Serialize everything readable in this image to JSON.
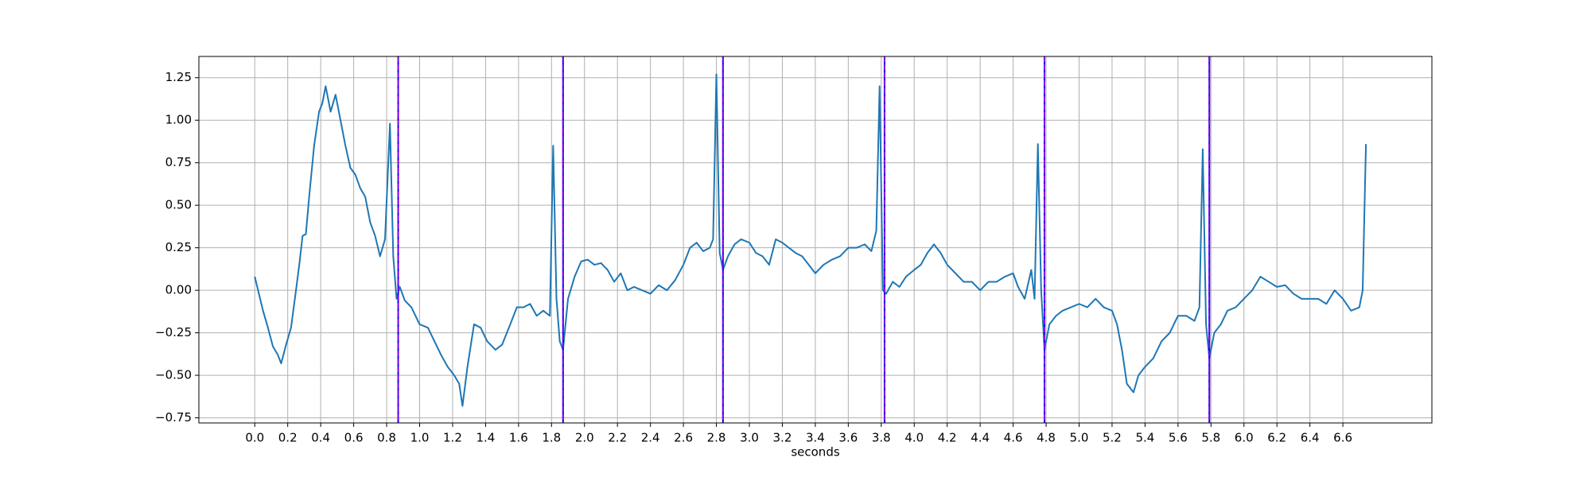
{
  "chart_data": {
    "type": "line",
    "xlabel": "seconds",
    "color": "#1f77b4",
    "grid": true,
    "xlim": [
      -0.339,
      7.14
    ],
    "ylim": [
      -0.78,
      1.375
    ],
    "xticks": [
      {
        "value": 0,
        "label": "0.0"
      },
      0.2,
      0.4,
      0.6,
      0.8,
      {
        "value": 1,
        "label": "1.0"
      },
      1.2,
      1.4,
      1.6,
      1.8,
      {
        "value": 2,
        "label": "2.0"
      },
      2.2,
      2.4,
      2.6,
      2.8,
      {
        "value": 3,
        "label": "3.0"
      },
      3.2,
      3.4,
      3.6,
      3.8,
      {
        "value": 4,
        "label": "4.0"
      },
      4.2,
      4.4,
      4.6,
      4.8,
      {
        "value": 5,
        "label": "5.0"
      },
      5.2,
      5.4,
      5.6,
      5.8,
      {
        "value": 6,
        "label": "6.0"
      },
      6.2,
      6.4,
      6.6
    ],
    "yticks": [
      {
        "value": -0.75,
        "label": "−0.75"
      },
      {
        "value": -0.5,
        "label": "−0.50"
      },
      {
        "value": -0.25,
        "label": "−0.25"
      },
      {
        "value": 0,
        "label": "0.00"
      },
      0.25,
      {
        "value": 0.5,
        "label": "0.50"
      },
      0.75,
      {
        "value": 1,
        "label": "1.00"
      },
      1.25
    ],
    "vlines": [
      {
        "color": "#0000ff",
        "style": "solid",
        "x": [
          0.87,
          1.87,
          2.84,
          3.82,
          4.79,
          5.79
        ]
      },
      {
        "color": "#8a00e6",
        "style": "dashed",
        "x": [
          0.87,
          1.87,
          2.84,
          3.82,
          4.79,
          5.79
        ]
      }
    ],
    "x": [
      0,
      0.02,
      0.05,
      0.08,
      0.11,
      0.14,
      0.16,
      0.19,
      0.22,
      0.25,
      0.27,
      0.29,
      0.31,
      0.33,
      0.36,
      0.39,
      0.41,
      0.43,
      0.46,
      0.49,
      0.52,
      0.55,
      0.58,
      0.61,
      0.64,
      0.67,
      0.7,
      0.73,
      0.76,
      0.79,
      0.82,
      0.84,
      0.86,
      0.88,
      0.91,
      0.95,
      1,
      1.05,
      1.09,
      1.13,
      1.17,
      1.21,
      1.24,
      1.26,
      1.29,
      1.33,
      1.37,
      1.41,
      1.46,
      1.5,
      1.55,
      1.59,
      1.63,
      1.67,
      1.71,
      1.75,
      1.79,
      1.81,
      1.83,
      1.85,
      1.87,
      1.9,
      1.94,
      1.98,
      2.02,
      2.06,
      2.1,
      2.14,
      2.18,
      2.22,
      2.26,
      2.3,
      2.35,
      2.4,
      2.45,
      2.5,
      2.55,
      2.6,
      2.64,
      2.68,
      2.72,
      2.76,
      2.78,
      2.8,
      2.82,
      2.84,
      2.87,
      2.91,
      2.95,
      3,
      3.04,
      3.08,
      3.12,
      3.16,
      3.2,
      3.24,
      3.28,
      3.32,
      3.36,
      3.4,
      3.45,
      3.5,
      3.55,
      3.6,
      3.65,
      3.7,
      3.74,
      3.77,
      3.79,
      3.81,
      3.83,
      3.87,
      3.91,
      3.95,
      4,
      4.04,
      4.08,
      4.12,
      4.16,
      4.2,
      4.25,
      4.3,
      4.35,
      4.4,
      4.45,
      4.5,
      4.55,
      4.6,
      4.63,
      4.67,
      4.71,
      4.73,
      4.75,
      4.77,
      4.79,
      4.82,
      4.86,
      4.9,
      4.95,
      5,
      5.05,
      5.1,
      5.15,
      5.2,
      5.23,
      5.26,
      5.29,
      5.33,
      5.36,
      5.4,
      5.45,
      5.5,
      5.55,
      5.6,
      5.65,
      5.7,
      5.73,
      5.75,
      5.77,
      5.79,
      5.82,
      5.86,
      5.9,
      5.95,
      6,
      6.05,
      6.1,
      6.15,
      6.2,
      6.25,
      6.3,
      6.35,
      6.4,
      6.45,
      6.5,
      6.55,
      6.6,
      6.65,
      6.7,
      6.72,
      6.74
    ],
    "values": [
      0.08,
      0,
      -0.12,
      -0.22,
      -0.33,
      -0.38,
      -0.43,
      -0.32,
      -0.22,
      0,
      0.15,
      0.32,
      0.33,
      0.55,
      0.85,
      1.05,
      1.1,
      1.2,
      1.05,
      1.15,
      1,
      0.85,
      0.72,
      0.68,
      0.6,
      0.55,
      0.4,
      0.32,
      0.2,
      0.3,
      0.98,
      0.2,
      -0.05,
      0.02,
      -0.06,
      -0.1,
      -0.2,
      -0.22,
      -0.3,
      -0.38,
      -0.45,
      -0.5,
      -0.55,
      -0.68,
      -0.45,
      -0.2,
      -0.22,
      -0.3,
      -0.35,
      -0.32,
      -0.2,
      -0.1,
      -0.1,
      -0.08,
      -0.15,
      -0.12,
      -0.15,
      0.85,
      -0.05,
      -0.3,
      -0.35,
      -0.05,
      0.08,
      0.17,
      0.18,
      0.15,
      0.16,
      0.12,
      0.05,
      0.1,
      0,
      0.02,
      0,
      -0.02,
      0.03,
      0,
      0.06,
      0.15,
      0.25,
      0.28,
      0.23,
      0.25,
      0.3,
      1.27,
      0.22,
      0.12,
      0.2,
      0.27,
      0.3,
      0.28,
      0.22,
      0.2,
      0.15,
      0.3,
      0.28,
      0.25,
      0.22,
      0.2,
      0.15,
      0.1,
      0.15,
      0.18,
      0.2,
      0.25,
      0.25,
      0.27,
      0.23,
      0.35,
      1.2,
      0,
      -0.02,
      0.05,
      0.02,
      0.08,
      0.12,
      0.15,
      0.22,
      0.27,
      0.22,
      0.15,
      0.1,
      0.05,
      0.05,
      0,
      0.05,
      0.05,
      0.08,
      0.1,
      0.02,
      -0.05,
      0.12,
      -0.05,
      0.86,
      0,
      -0.35,
      -0.2,
      -0.15,
      -0.12,
      -0.1,
      -0.08,
      -0.1,
      -0.05,
      -0.1,
      -0.12,
      -0.2,
      -0.35,
      -0.55,
      -0.6,
      -0.5,
      -0.45,
      -0.4,
      -0.3,
      -0.25,
      -0.15,
      -0.15,
      -0.18,
      -0.1,
      0.83,
      -0.2,
      -0.4,
      -0.25,
      -0.2,
      -0.12,
      -0.1,
      -0.05,
      0,
      0.08,
      0.05,
      0.02,
      0.03,
      -0.02,
      -0.05,
      -0.05,
      -0.05,
      -0.08,
      0,
      -0.05,
      -0.12,
      -0.1,
      0,
      0.86
    ]
  }
}
